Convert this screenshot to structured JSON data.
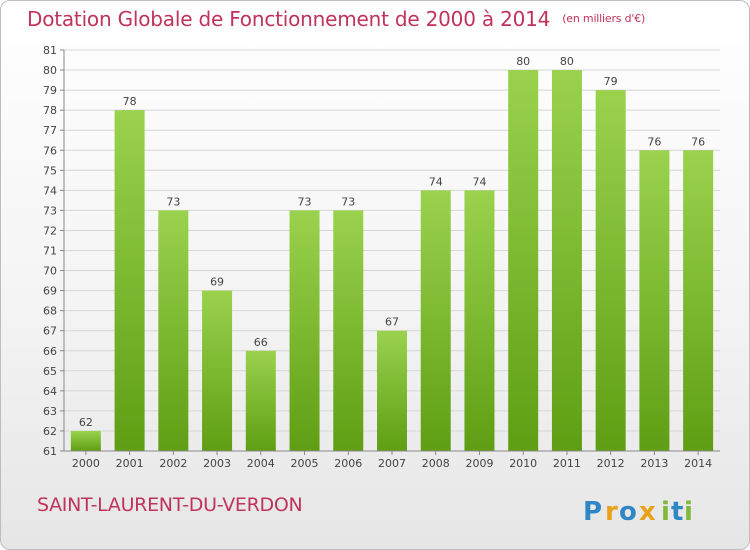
{
  "title": "Dotation Globale de Fonctionnement de 2000 à 2014",
  "unit": "(en milliers d'€)",
  "location": "SAINT-LAURENT-DU-VERDON",
  "brand": {
    "logo_text": "Proxiti",
    "letters": [
      {
        "ch": "P",
        "color": "#2f87c6"
      },
      {
        "ch": "r",
        "color": "#e8a21a"
      },
      {
        "ch": "o",
        "color": "#2f87c6"
      },
      {
        "ch": "x",
        "color": "#e8a21a"
      },
      {
        "ch": "i",
        "color": "#7fb83a"
      },
      {
        "ch": "t",
        "color": "#2f87c6"
      },
      {
        "ch": "i",
        "color": "#7fb83a"
      }
    ]
  },
  "colors": {
    "title": "#c0335a",
    "bar_top": "#9ad24e",
    "bar_bottom": "#5f9e14",
    "grid": "#d6d6d6"
  },
  "chart_data": {
    "type": "bar",
    "categories": [
      "2000",
      "2001",
      "2002",
      "2003",
      "2004",
      "2005",
      "2006",
      "2007",
      "2008",
      "2009",
      "2010",
      "2011",
      "2012",
      "2013",
      "2014"
    ],
    "values": [
      62,
      78,
      73,
      69,
      66,
      73,
      73,
      67,
      74,
      74,
      80,
      80,
      79,
      76,
      76
    ],
    "ylim": [
      61,
      81
    ],
    "yticks": [
      61,
      62,
      63,
      64,
      65,
      66,
      67,
      68,
      69,
      70,
      71,
      72,
      73,
      74,
      75,
      76,
      77,
      78,
      79,
      80,
      81
    ],
    "grid": true,
    "legend": "none"
  }
}
